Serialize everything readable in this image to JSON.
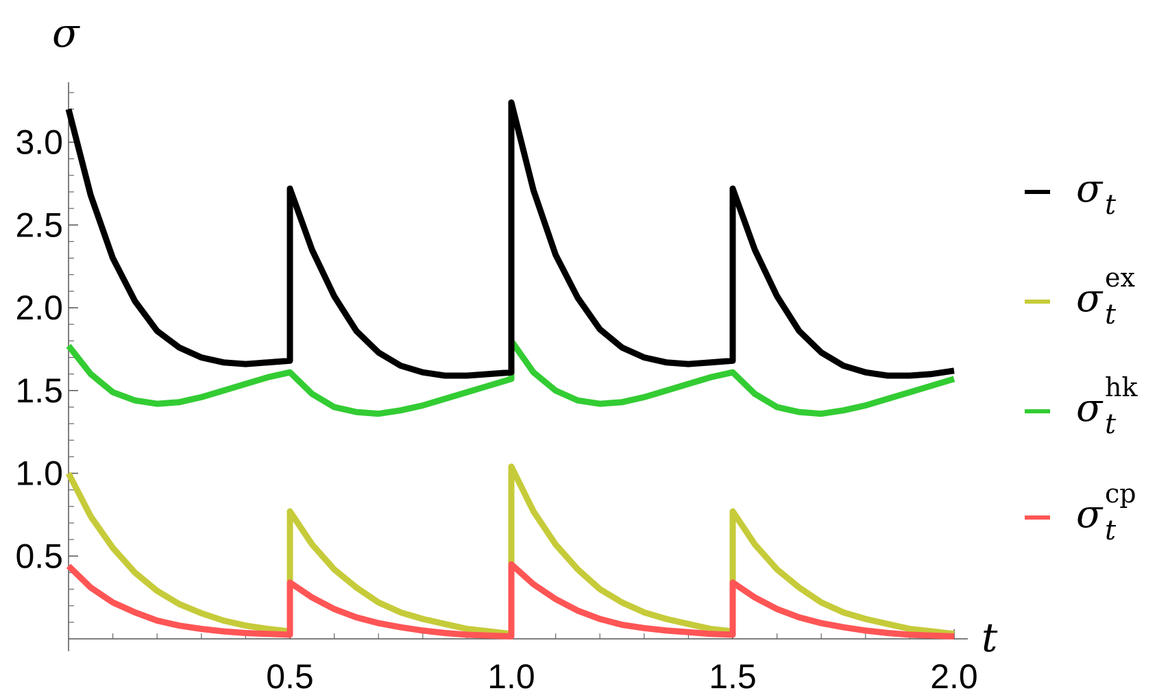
{
  "chart_data": {
    "type": "line",
    "title": "",
    "xlabel": "t",
    "ylabel": "σ",
    "xlim": [
      0,
      2.0
    ],
    "ylim": [
      0,
      3.35
    ],
    "grid": false,
    "legend_placement": "right",
    "x_ticks": [
      {
        "value": 0.5,
        "label": "0.5"
      },
      {
        "value": 1.0,
        "label": "1.0"
      },
      {
        "value": 1.5,
        "label": "1.5"
      },
      {
        "value": 2.0,
        "label": "2.0"
      }
    ],
    "y_ticks": [
      {
        "value": 0.5,
        "label": "0.5"
      },
      {
        "value": 1.0,
        "label": "1.0"
      },
      {
        "value": 1.5,
        "label": "1.5"
      },
      {
        "value": 2.0,
        "label": "2.0"
      },
      {
        "value": 2.5,
        "label": "2.5"
      },
      {
        "value": 3.0,
        "label": "3.0"
      }
    ],
    "series": [
      {
        "name": "σ_t",
        "legend_symbol": "σ",
        "legend_sub": "t",
        "legend_sup": "",
        "color": "#000000",
        "x": [
          0.0,
          0.05,
          0.1,
          0.15,
          0.2,
          0.25,
          0.3,
          0.35,
          0.4,
          0.45,
          0.5,
          0.5,
          0.55,
          0.6,
          0.65,
          0.7,
          0.75,
          0.8,
          0.85,
          0.9,
          0.95,
          1.0,
          1.0,
          1.05,
          1.1,
          1.15,
          1.2,
          1.25,
          1.3,
          1.35,
          1.4,
          1.45,
          1.5,
          1.5,
          1.55,
          1.6,
          1.65,
          1.7,
          1.75,
          1.8,
          1.85,
          1.9,
          1.95,
          2.0
        ],
        "y": [
          3.2,
          2.68,
          2.3,
          2.04,
          1.86,
          1.76,
          1.7,
          1.67,
          1.66,
          1.67,
          1.68,
          2.72,
          2.35,
          2.07,
          1.86,
          1.73,
          1.65,
          1.61,
          1.59,
          1.59,
          1.6,
          1.61,
          3.24,
          2.71,
          2.32,
          2.06,
          1.87,
          1.76,
          1.7,
          1.67,
          1.66,
          1.67,
          1.68,
          2.72,
          2.35,
          2.07,
          1.86,
          1.73,
          1.65,
          1.61,
          1.59,
          1.59,
          1.6,
          1.62
        ]
      },
      {
        "name": "σ_t^ex",
        "legend_symbol": "σ",
        "legend_sub": "t",
        "legend_sup": "ex",
        "color": "#c6cb3a",
        "x": [
          0.0,
          0.05,
          0.1,
          0.15,
          0.2,
          0.25,
          0.3,
          0.35,
          0.4,
          0.45,
          0.5,
          0.5,
          0.55,
          0.6,
          0.65,
          0.7,
          0.75,
          0.8,
          0.85,
          0.9,
          0.95,
          1.0,
          1.0,
          1.05,
          1.1,
          1.15,
          1.2,
          1.25,
          1.3,
          1.35,
          1.4,
          1.45,
          1.5,
          1.5,
          1.55,
          1.6,
          1.65,
          1.7,
          1.75,
          1.8,
          1.85,
          1.9,
          1.95,
          2.0
        ],
        "y": [
          1.0,
          0.74,
          0.55,
          0.4,
          0.29,
          0.21,
          0.155,
          0.11,
          0.08,
          0.06,
          0.045,
          0.77,
          0.57,
          0.42,
          0.31,
          0.22,
          0.16,
          0.12,
          0.09,
          0.06,
          0.045,
          0.03,
          1.04,
          0.77,
          0.57,
          0.42,
          0.3,
          0.22,
          0.16,
          0.12,
          0.09,
          0.06,
          0.045,
          0.77,
          0.57,
          0.42,
          0.31,
          0.22,
          0.16,
          0.12,
          0.09,
          0.06,
          0.045,
          0.03
        ]
      },
      {
        "name": "σ_t^hk",
        "legend_symbol": "σ",
        "legend_sub": "t",
        "legend_sup": "hk",
        "color": "#33cc33",
        "x": [
          0.0,
          0.05,
          0.1,
          0.15,
          0.2,
          0.25,
          0.3,
          0.35,
          0.4,
          0.45,
          0.5,
          0.55,
          0.6,
          0.65,
          0.7,
          0.75,
          0.8,
          0.85,
          0.9,
          0.95,
          1.0,
          1.0,
          1.05,
          1.1,
          1.15,
          1.2,
          1.25,
          1.3,
          1.35,
          1.4,
          1.45,
          1.5,
          1.55,
          1.6,
          1.65,
          1.7,
          1.75,
          1.8,
          1.85,
          1.9,
          1.95,
          2.0
        ],
        "y": [
          1.77,
          1.6,
          1.49,
          1.44,
          1.42,
          1.43,
          1.46,
          1.5,
          1.54,
          1.58,
          1.61,
          1.48,
          1.4,
          1.37,
          1.36,
          1.38,
          1.41,
          1.45,
          1.49,
          1.53,
          1.57,
          1.8,
          1.61,
          1.5,
          1.44,
          1.42,
          1.43,
          1.46,
          1.5,
          1.54,
          1.58,
          1.61,
          1.48,
          1.4,
          1.37,
          1.36,
          1.38,
          1.41,
          1.45,
          1.49,
          1.53,
          1.57
        ]
      },
      {
        "name": "σ_t^cp",
        "legend_symbol": "σ",
        "legend_sub": "t",
        "legend_sup": "cp",
        "color": "#ff5555",
        "x": [
          0.0,
          0.05,
          0.1,
          0.15,
          0.2,
          0.25,
          0.3,
          0.35,
          0.4,
          0.45,
          0.5,
          0.5,
          0.55,
          0.6,
          0.65,
          0.7,
          0.75,
          0.8,
          0.85,
          0.9,
          0.95,
          1.0,
          1.0,
          1.05,
          1.1,
          1.15,
          1.2,
          1.25,
          1.3,
          1.35,
          1.4,
          1.45,
          1.5,
          1.5,
          1.55,
          1.6,
          1.65,
          1.7,
          1.75,
          1.8,
          1.85,
          1.9,
          1.95,
          2.0
        ],
        "y": [
          0.44,
          0.31,
          0.22,
          0.16,
          0.11,
          0.08,
          0.06,
          0.045,
          0.035,
          0.03,
          0.025,
          0.34,
          0.25,
          0.18,
          0.13,
          0.095,
          0.07,
          0.05,
          0.035,
          0.025,
          0.02,
          0.015,
          0.45,
          0.33,
          0.24,
          0.17,
          0.12,
          0.085,
          0.065,
          0.05,
          0.04,
          0.03,
          0.025,
          0.34,
          0.25,
          0.18,
          0.13,
          0.095,
          0.07,
          0.05,
          0.035,
          0.025,
          0.02,
          0.015
        ]
      }
    ],
    "legend_order": [
      0,
      1,
      2,
      3
    ]
  }
}
